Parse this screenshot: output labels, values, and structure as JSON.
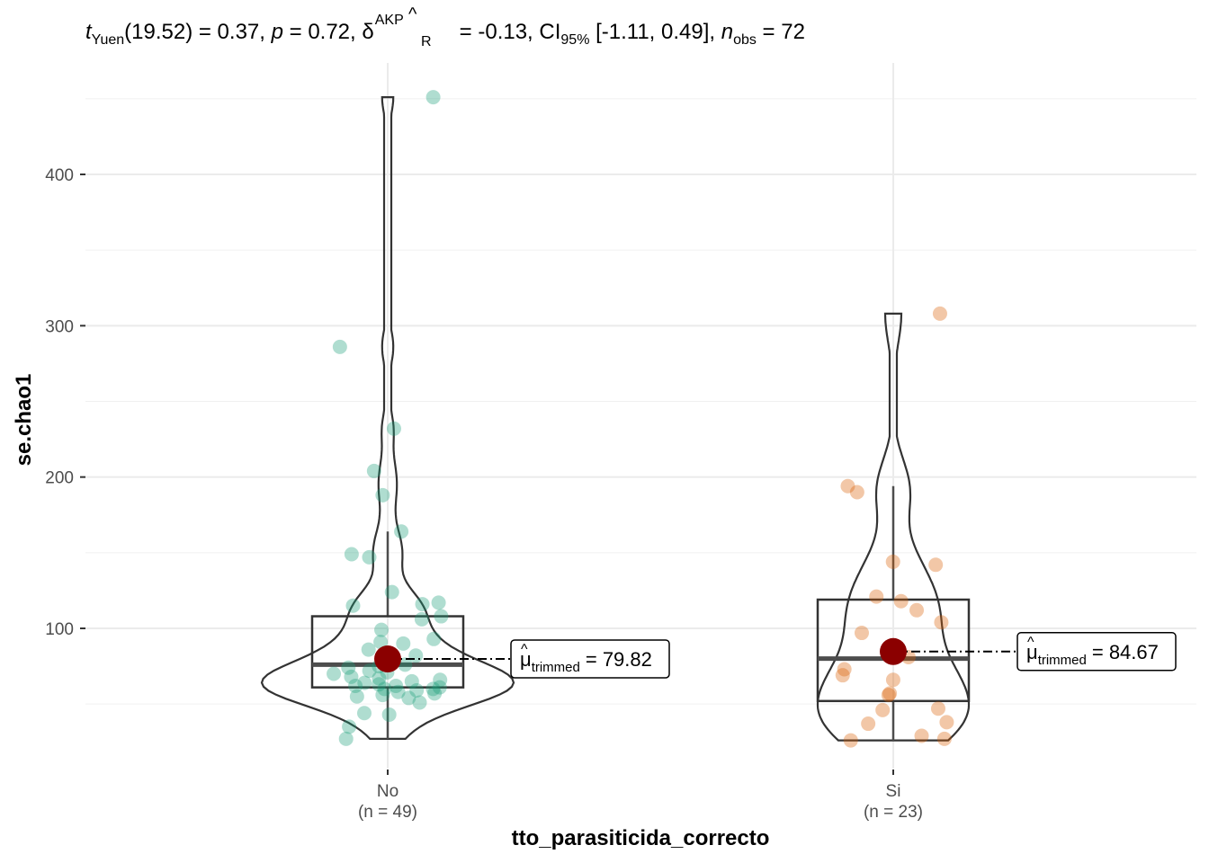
{
  "chart_data": {
    "type": "violin-box-scatter",
    "subtitle_parts": {
      "t": "t",
      "t_sub": "Yuen",
      "rest1": "(19.52) = 0.37, ",
      "p": "p",
      "rest2": " = 0.72, ",
      "delta": "δ",
      "delta_hat": "^",
      "delta_sup": "AKP",
      "delta_sub": "R",
      "rest3": " = -0.13, CI",
      "ci_sub": "95%",
      "rest4": " [-1.11, 0.49], ",
      "n": "n",
      "n_sub": "obs",
      "rest5": " = 72"
    },
    "xlabel": "tto_parasiticida_correcto",
    "ylabel": "se.chao1",
    "ylim": [
      5,
      475
    ],
    "yticks": [
      100,
      200,
      300,
      400
    ],
    "grid": true,
    "groups": [
      {
        "name": "No",
        "n_label": "(n = 49)",
        "color": "#1B9E77",
        "points": [
          451,
          286,
          232,
          204,
          188,
          164,
          149,
          147,
          124,
          117,
          116,
          115,
          108,
          106,
          99,
          93,
          91,
          90,
          86,
          82,
          78,
          76,
          75,
          74,
          72,
          71,
          70,
          68,
          67,
          66,
          65,
          64,
          63,
          62,
          62,
          61,
          60,
          60,
          59,
          58,
          57,
          56,
          55,
          54,
          51,
          44,
          43,
          35,
          27
        ],
        "box": {
          "q1": 61,
          "median": 76,
          "q3": 108,
          "whisker_low": 27,
          "whisker_high": 164
        },
        "trimmed_mean": 79.82,
        "mu_label_value": "= 79.82",
        "violin_max_halfwidth": 140
      },
      {
        "name": "Si",
        "n_label": "(n = 23)",
        "color": "#D95F02",
        "points": [
          308,
          194,
          190,
          144,
          142,
          121,
          118,
          112,
          104,
          97,
          81,
          73,
          69,
          66,
          56,
          57,
          47,
          46,
          38,
          37,
          29,
          27,
          26
        ],
        "box": {
          "q1": 52,
          "median": 80,
          "q3": 119,
          "whisker_low": 26,
          "whisker_high": 194
        },
        "trimmed_mean": 84.67,
        "mu_label_value": "= 84.67",
        "violin_max_halfwidth": 84
      }
    ],
    "mu_symbol": "μ",
    "mu_sub": "trimmed",
    "mean_point_color": "#8B0000"
  }
}
